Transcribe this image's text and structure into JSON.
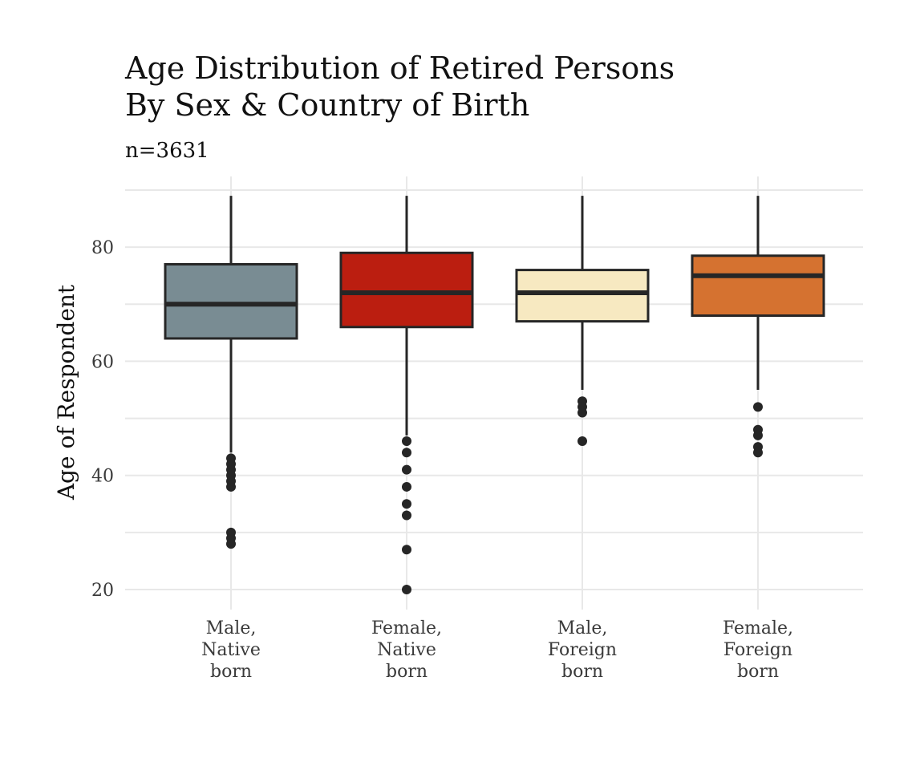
{
  "chart_data": {
    "type": "boxplot",
    "title_lines": [
      "Age Distribution of Retired Persons",
      "By Sex & Country of Birth"
    ],
    "subtitle": "n=3631",
    "ylabel": "Age of Respondent",
    "xlabel": "",
    "ylim": [
      18,
      91
    ],
    "y_ticks": [
      20,
      40,
      60,
      80
    ],
    "y_minor": [
      30,
      50,
      70,
      90
    ],
    "grid": true,
    "legend": "none",
    "outline_color": "#262626",
    "grid_color": "#e8e8e8",
    "categories": [
      {
        "label_lines": [
          "Male,",
          "Native",
          "born"
        ],
        "fill": "#798c93",
        "q1": 64,
        "median": 70,
        "q3": 77,
        "whisker_low": 44,
        "whisker_high": 89,
        "outliers": [
          43,
          42,
          41,
          40,
          39,
          38,
          30,
          29,
          28
        ]
      },
      {
        "label_lines": [
          "Female,",
          "Native",
          "born"
        ],
        "fill": "#bb1e10",
        "q1": 66,
        "median": 72,
        "q3": 79,
        "whisker_low": 47,
        "whisker_high": 89,
        "outliers": [
          46,
          44,
          41,
          38,
          35,
          33,
          27,
          20
        ]
      },
      {
        "label_lines": [
          "Male,",
          "Foreign",
          "born"
        ],
        "fill": "#f7e9c1",
        "q1": 67,
        "median": 72,
        "q3": 76,
        "whisker_low": 55,
        "whisker_high": 89,
        "outliers": [
          53,
          52,
          51,
          46
        ]
      },
      {
        "label_lines": [
          "Female,",
          "Foreign",
          "born"
        ],
        "fill": "#d57230",
        "q1": 68,
        "median": 75,
        "q3": 78.5,
        "whisker_low": 55,
        "whisker_high": 89,
        "outliers": [
          52,
          48,
          47,
          45,
          44
        ]
      }
    ]
  }
}
